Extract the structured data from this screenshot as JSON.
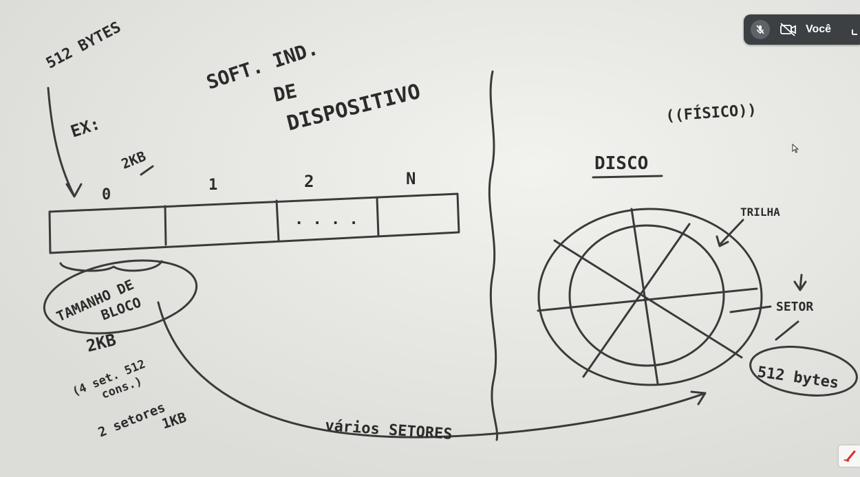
{
  "call_bar": {
    "participant_label": "Você",
    "mic_state": "muted",
    "camera_state": "off"
  },
  "whiteboard": {
    "labels": {
      "bytes_512": "512 BYTES",
      "ex": "EX:",
      "kb2_top": "2KB",
      "soft_ind_1": "SOFT. IND.",
      "soft_ind_2": "DE",
      "soft_ind_3": "DISPOSITIVO",
      "fisico": "((FÍSICO))",
      "disco": "DISCO",
      "trilha": "TRILHA",
      "setor": "SETOR",
      "bytes_512_circle": "512 bytes",
      "tamanho_1": "TAMANHO DE",
      "tamanho_2": "BLOCO",
      "kb2_bottom": "2KB",
      "setores_4_1": "(4 set. 512",
      "setores_4_2": "cons.)",
      "setores_2": "2 setores",
      "kb1": "1KB",
      "varios_setores": "vários SETORES",
      "dots": ". . . ."
    },
    "block_indices": [
      "0",
      "1",
      "2",
      "N"
    ]
  },
  "icons": {
    "mic": "mic-off-icon",
    "camera": "camera-off-icon",
    "more": "more-icon",
    "pen": "annotate-pen-icon",
    "cursor": "mouse-cursor-icon"
  }
}
